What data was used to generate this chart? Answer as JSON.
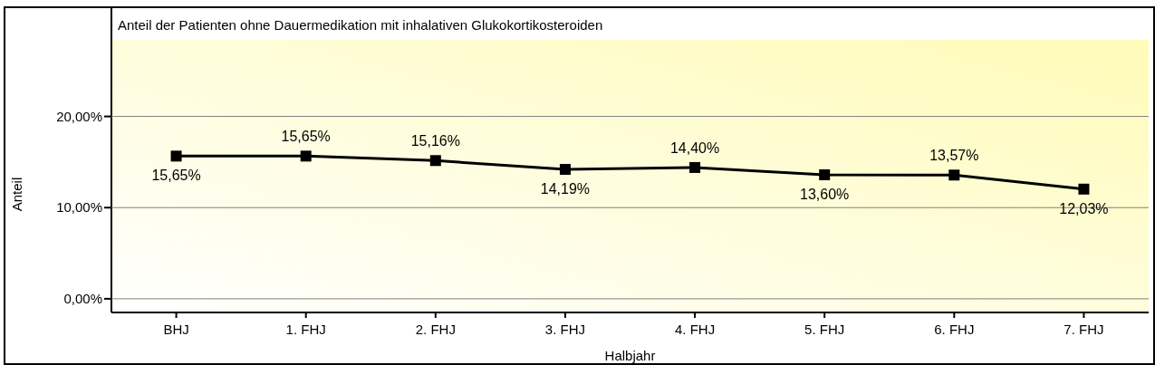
{
  "chart_data": {
    "type": "line",
    "title": "Anteil der Patienten ohne Dauermedikation mit inhalativen Glukokortikosteroiden",
    "xlabel": "Halbjahr",
    "ylabel": "Anteil",
    "categories": [
      "BHJ",
      "1. FHJ",
      "2. FHJ",
      "3. FHJ",
      "4. FHJ",
      "5. FHJ",
      "6. FHJ",
      "7. FHJ"
    ],
    "series": [
      {
        "color": "#000000",
        "values": [
          15.65,
          15.65,
          15.16,
          14.19,
          14.4,
          13.6,
          13.57,
          12.03
        ],
        "value_labels": [
          "15,65%",
          "15,65%",
          "15,16%",
          "14,19%",
          "14,40%",
          "13,60%",
          "13,57%",
          "12,03%"
        ]
      }
    ],
    "ylim": [
      -1.5,
      28.4
    ],
    "yticks": [
      {
        "value": 0,
        "label": "0,00%"
      },
      {
        "value": 10,
        "label": "10,00%"
      },
      {
        "value": 20,
        "label": "20,00%"
      }
    ],
    "grid": "y",
    "marker": "square",
    "line_style": "solid"
  }
}
